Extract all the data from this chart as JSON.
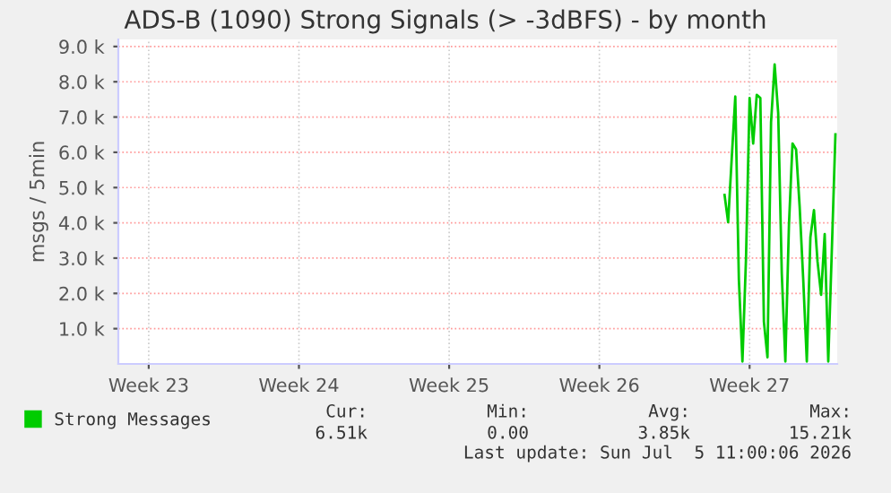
{
  "chart_data": {
    "type": "line",
    "title": "ADS-B (1090) Strong Signals (> -3dBFS) - by month",
    "ylabel": "msgs / 5min",
    "categories": [
      null,
      null,
      null,
      null,
      null,
      null,
      null,
      null,
      "Week 23",
      null,
      null,
      null,
      null,
      null,
      null,
      null,
      null,
      null,
      null,
      null,
      null,
      null,
      null,
      null,
      null,
      null,
      null,
      null,
      null,
      null,
      null,
      null,
      null,
      null,
      null,
      null,
      null,
      null,
      null,
      null,
      null,
      null,
      null,
      null,
      null,
      null,
      null,
      null,
      null,
      null,
      "Week 24",
      null,
      null,
      null,
      null,
      null,
      null,
      null,
      null,
      null,
      null,
      null,
      null,
      null,
      null,
      null,
      null,
      null,
      null,
      null,
      null,
      null,
      null,
      null,
      null,
      null,
      null,
      null,
      null,
      null,
      null,
      null,
      null,
      null,
      null,
      null,
      null,
      null,
      null,
      null,
      null,
      null,
      "Week 25",
      null,
      null,
      null,
      null,
      null,
      null,
      null,
      null,
      null,
      null,
      null,
      null,
      null,
      null,
      null,
      null,
      null,
      null,
      null,
      null,
      null,
      null,
      null,
      null,
      null,
      null,
      null,
      null,
      null,
      null,
      null,
      null,
      null,
      null,
      null,
      null,
      null,
      null,
      null,
      null,
      null,
      "Week 26",
      null,
      null,
      null,
      null,
      null,
      null,
      null,
      null,
      null,
      null,
      null,
      null,
      null,
      null,
      null,
      null,
      null,
      null,
      null,
      null,
      null,
      null,
      null,
      null,
      null,
      null,
      null,
      null,
      null,
      null,
      null,
      null,
      null,
      null,
      null,
      null,
      null,
      null,
      null,
      null,
      null,
      "Week 27",
      null,
      null,
      null,
      null,
      null,
      null,
      null,
      null,
      null,
      null,
      null,
      null,
      null,
      null,
      null,
      null,
      null,
      null,
      null,
      null,
      null,
      null,
      null,
      null
    ],
    "series": [
      {
        "name": "Strong Messages",
        "color": "#00cc00",
        "values": [
          null,
          null,
          null,
          null,
          null,
          null,
          null,
          null,
          null,
          null,
          null,
          null,
          null,
          null,
          null,
          null,
          null,
          null,
          null,
          null,
          null,
          null,
          null,
          null,
          null,
          null,
          null,
          null,
          null,
          null,
          null,
          null,
          null,
          null,
          null,
          null,
          null,
          null,
          null,
          null,
          null,
          null,
          null,
          null,
          null,
          null,
          null,
          null,
          null,
          null,
          null,
          null,
          null,
          null,
          null,
          null,
          null,
          null,
          null,
          null,
          null,
          null,
          null,
          null,
          null,
          null,
          null,
          null,
          null,
          null,
          null,
          null,
          null,
          null,
          null,
          null,
          null,
          null,
          null,
          null,
          null,
          null,
          null,
          null,
          null,
          null,
          null,
          null,
          null,
          null,
          null,
          null,
          null,
          null,
          null,
          null,
          null,
          null,
          null,
          null,
          null,
          null,
          null,
          null,
          null,
          null,
          null,
          null,
          null,
          null,
          null,
          null,
          null,
          null,
          null,
          null,
          null,
          null,
          null,
          null,
          null,
          null,
          null,
          null,
          null,
          null,
          null,
          null,
          null,
          null,
          null,
          null,
          null,
          null,
          null,
          null,
          null,
          null,
          null,
          null,
          null,
          null,
          null,
          null,
          null,
          null,
          null,
          null,
          null,
          null,
          null,
          null,
          null,
          null,
          null,
          null,
          null,
          null,
          null,
          null,
          null,
          null,
          null,
          null,
          null,
          null,
          null,
          null,
          null,
          4790,
          4020,
          5820,
          7580,
          2400,
          70,
          3000,
          7540,
          6250,
          7630,
          7540,
          1200,
          190,
          6850,
          8490,
          7110,
          2560,
          70,
          3930,
          6250,
          6080,
          4450,
          2390,
          70,
          3590,
          4360,
          2900,
          1960,
          3680,
          70,
          3250,
          6510
        ]
      }
    ],
    "ylim": [
      0,
      9200
    ],
    "yticks": [
      {
        "value": 1000,
        "label": "1.0 k"
      },
      {
        "value": 2000,
        "label": "2.0 k"
      },
      {
        "value": 3000,
        "label": "3.0 k"
      },
      {
        "value": 4000,
        "label": "4.0 k"
      },
      {
        "value": 5000,
        "label": "5.0 k"
      },
      {
        "value": 6000,
        "label": "6.0 k"
      },
      {
        "value": 7000,
        "label": "7.0 k"
      },
      {
        "value": 8000,
        "label": "8.0 k"
      },
      {
        "value": 9000,
        "label": "9.0 k"
      }
    ],
    "grid": true,
    "legend": "bottom",
    "marker": "none",
    "line_style": "solid",
    "annotations": [
      "Cur:",
      "6.51k",
      "Min:",
      "0.00",
      "Avg:",
      "3.85k",
      "Max:",
      "15.21k",
      "Last update: Sun Jul  5 11:00:06 2026"
    ]
  }
}
